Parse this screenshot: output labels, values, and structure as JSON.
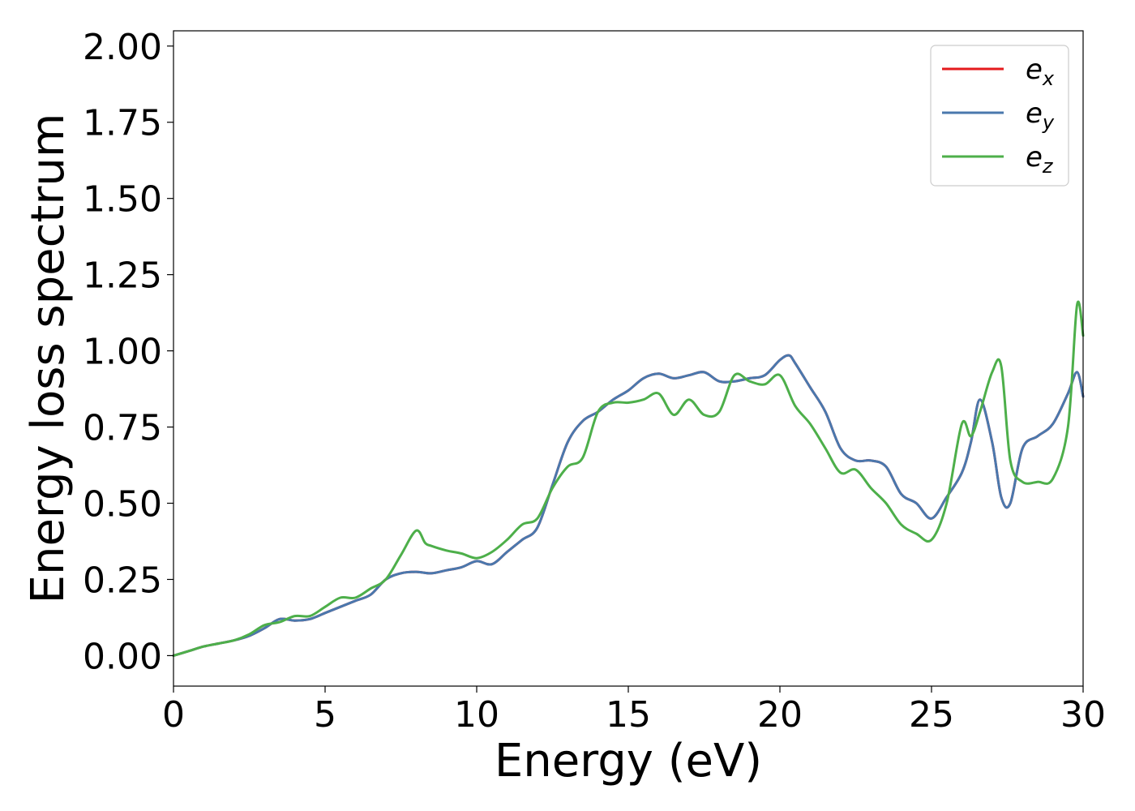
{
  "chart_data": {
    "type": "line",
    "title": "",
    "xlabel": "Energy (eV)",
    "ylabel": "Energy loss spectrum",
    "xlim": [
      0,
      30
    ],
    "ylim": [
      -0.1,
      2.05
    ],
    "xticks": [
      0,
      5,
      10,
      15,
      20,
      25,
      30
    ],
    "yticks": [
      0.0,
      0.25,
      0.5,
      0.75,
      1.0,
      1.25,
      1.5,
      1.75,
      2.0
    ],
    "ytick_labels": [
      "0.00",
      "0.25",
      "0.50",
      "0.75",
      "1.00",
      "1.25",
      "1.50",
      "1.75",
      "2.00"
    ],
    "grid": false,
    "legend_position": "top-right",
    "series": [
      {
        "name": "e",
        "subscript": "x",
        "color": "#e41a1c",
        "x": [
          0,
          0.5,
          1,
          1.5,
          2,
          2.5,
          3,
          3.5,
          4,
          4.5,
          5,
          5.5,
          6,
          6.5,
          7,
          7.5,
          8,
          8.5,
          9,
          9.5,
          10,
          10.5,
          11,
          11.5,
          12,
          12.5,
          13,
          13.5,
          14,
          14.5,
          15,
          15.5,
          16,
          16.5,
          17,
          17.5,
          18,
          18.5,
          19,
          19.5,
          20,
          20.3,
          20.5,
          21,
          21.5,
          22,
          22.5,
          23,
          23.5,
          24,
          24.5,
          25,
          25.5,
          26,
          26.3,
          26.6,
          27,
          27.3,
          27.6,
          28,
          28.5,
          29,
          29.5,
          29.8,
          30
        ],
        "y": [
          0.0,
          0.015,
          0.03,
          0.04,
          0.05,
          0.065,
          0.09,
          0.12,
          0.115,
          0.12,
          0.14,
          0.16,
          0.18,
          0.2,
          0.25,
          0.27,
          0.275,
          0.27,
          0.28,
          0.29,
          0.31,
          0.3,
          0.34,
          0.38,
          0.42,
          0.56,
          0.7,
          0.77,
          0.8,
          0.84,
          0.87,
          0.91,
          0.925,
          0.91,
          0.92,
          0.93,
          0.9,
          0.9,
          0.91,
          0.92,
          0.97,
          0.985,
          0.96,
          0.88,
          0.8,
          0.68,
          0.64,
          0.64,
          0.62,
          0.53,
          0.5,
          0.45,
          0.52,
          0.6,
          0.7,
          0.84,
          0.7,
          0.52,
          0.5,
          0.68,
          0.72,
          0.76,
          0.86,
          0.93,
          0.85
        ]
      },
      {
        "name": "e",
        "subscript": "y",
        "color": "#4a78ad",
        "x": [
          0,
          0.5,
          1,
          1.5,
          2,
          2.5,
          3,
          3.5,
          4,
          4.5,
          5,
          5.5,
          6,
          6.5,
          7,
          7.5,
          8,
          8.5,
          9,
          9.5,
          10,
          10.5,
          11,
          11.5,
          12,
          12.5,
          13,
          13.5,
          14,
          14.5,
          15,
          15.5,
          16,
          16.5,
          17,
          17.5,
          18,
          18.5,
          19,
          19.5,
          20,
          20.3,
          20.5,
          21,
          21.5,
          22,
          22.5,
          23,
          23.5,
          24,
          24.5,
          25,
          25.5,
          26,
          26.3,
          26.6,
          27,
          27.3,
          27.6,
          28,
          28.5,
          29,
          29.5,
          29.8,
          30
        ],
        "y": [
          0.0,
          0.015,
          0.03,
          0.04,
          0.05,
          0.065,
          0.09,
          0.12,
          0.115,
          0.12,
          0.14,
          0.16,
          0.18,
          0.2,
          0.25,
          0.27,
          0.275,
          0.27,
          0.28,
          0.29,
          0.31,
          0.3,
          0.34,
          0.38,
          0.42,
          0.56,
          0.7,
          0.77,
          0.8,
          0.84,
          0.87,
          0.91,
          0.925,
          0.91,
          0.92,
          0.93,
          0.9,
          0.9,
          0.91,
          0.92,
          0.97,
          0.985,
          0.96,
          0.88,
          0.8,
          0.68,
          0.64,
          0.64,
          0.62,
          0.53,
          0.5,
          0.45,
          0.52,
          0.6,
          0.7,
          0.84,
          0.7,
          0.52,
          0.5,
          0.68,
          0.72,
          0.76,
          0.86,
          0.93,
          0.85
        ]
      },
      {
        "name": "e",
        "subscript": "z",
        "color": "#4daf4a",
        "x": [
          0,
          0.5,
          1,
          1.5,
          2,
          2.5,
          3,
          3.5,
          4,
          4.5,
          5,
          5.5,
          6,
          6.5,
          7,
          7.5,
          8,
          8.3,
          8.5,
          9,
          9.5,
          10,
          10.5,
          11,
          11.5,
          12,
          12.5,
          13,
          13.5,
          14,
          14.5,
          15,
          15.5,
          16,
          16.5,
          17,
          17.5,
          18,
          18.5,
          19,
          19.5,
          20,
          20.5,
          21,
          21.5,
          22,
          22.5,
          23,
          23.5,
          24,
          24.5,
          25,
          25.5,
          26,
          26.3,
          26.6,
          27,
          27.3,
          27.6,
          28,
          28.5,
          29,
          29.5,
          29.8,
          30
        ],
        "y": [
          0.0,
          0.015,
          0.03,
          0.04,
          0.05,
          0.07,
          0.1,
          0.11,
          0.13,
          0.13,
          0.16,
          0.19,
          0.19,
          0.22,
          0.25,
          0.33,
          0.41,
          0.37,
          0.36,
          0.345,
          0.335,
          0.32,
          0.34,
          0.38,
          0.43,
          0.45,
          0.55,
          0.62,
          0.65,
          0.8,
          0.83,
          0.83,
          0.84,
          0.86,
          0.79,
          0.84,
          0.79,
          0.8,
          0.92,
          0.9,
          0.89,
          0.92,
          0.82,
          0.76,
          0.68,
          0.6,
          0.61,
          0.55,
          0.5,
          0.43,
          0.4,
          0.38,
          0.5,
          0.76,
          0.72,
          0.8,
          0.93,
          0.95,
          0.64,
          0.57,
          0.57,
          0.58,
          0.75,
          1.15,
          1.05
        ]
      }
    ]
  }
}
